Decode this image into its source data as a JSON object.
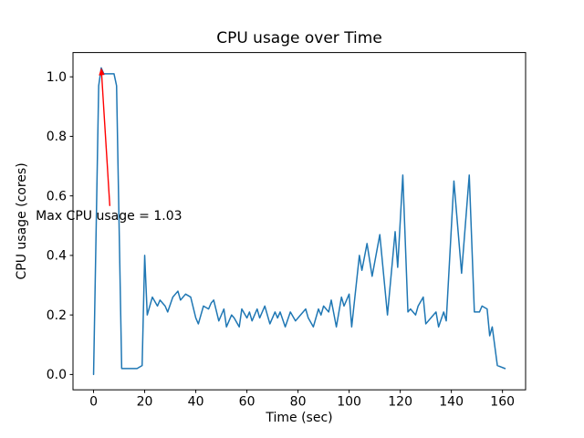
{
  "figure": {
    "background": "#ffffff"
  },
  "chart_data": {
    "type": "line",
    "title": "CPU usage over Time",
    "xlabel": "Time (sec)",
    "ylabel": "CPU usage (cores)",
    "xlim": [
      -8.05,
      169.05
    ],
    "ylim": [
      -0.0515,
      1.0815
    ],
    "xticks": [
      0,
      20,
      40,
      60,
      80,
      100,
      120,
      140,
      160
    ],
    "yticks": [
      0.0,
      0.2,
      0.4,
      0.6,
      0.8,
      1.0
    ],
    "ytick_labels": [
      "0.0",
      "0.2",
      "0.4",
      "0.6",
      "0.8",
      "1.0"
    ],
    "grid": false,
    "legend": null,
    "series": [
      {
        "name": "CPU usage",
        "color": "#1f77b4",
        "x": [
          0,
          2,
          3,
          4,
          6,
          8,
          9,
          11,
          13,
          15,
          17,
          19,
          20,
          21,
          23,
          25,
          26,
          28,
          29,
          31,
          33,
          34,
          36,
          38,
          40,
          41,
          43,
          45,
          46,
          47,
          49,
          51,
          52,
          54,
          55,
          57,
          58,
          60,
          61,
          62,
          64,
          65,
          67,
          69,
          71,
          72,
          73,
          75,
          77,
          79,
          81,
          83,
          84,
          86,
          88,
          89,
          90,
          92,
          93,
          95,
          97,
          98,
          100,
          101,
          104,
          105,
          107,
          109,
          112,
          115,
          118,
          119,
          121,
          123,
          124,
          126,
          127,
          129,
          130,
          132,
          134,
          135,
          137,
          138,
          141,
          144,
          147,
          149,
          151,
          152,
          154,
          155,
          156,
          158,
          161
        ],
        "y": [
          0.0,
          0.97,
          1.03,
          1.01,
          1.01,
          1.01,
          0.97,
          0.02,
          0.02,
          0.02,
          0.02,
          0.03,
          0.4,
          0.2,
          0.26,
          0.23,
          0.25,
          0.23,
          0.21,
          0.26,
          0.28,
          0.25,
          0.27,
          0.26,
          0.19,
          0.17,
          0.23,
          0.22,
          0.24,
          0.25,
          0.18,
          0.22,
          0.16,
          0.2,
          0.19,
          0.16,
          0.22,
          0.19,
          0.21,
          0.18,
          0.22,
          0.19,
          0.23,
          0.17,
          0.21,
          0.19,
          0.21,
          0.16,
          0.21,
          0.18,
          0.2,
          0.22,
          0.19,
          0.16,
          0.22,
          0.2,
          0.23,
          0.21,
          0.25,
          0.16,
          0.26,
          0.23,
          0.27,
          0.16,
          0.4,
          0.35,
          0.44,
          0.33,
          0.47,
          0.2,
          0.48,
          0.36,
          0.67,
          0.21,
          0.22,
          0.2,
          0.23,
          0.26,
          0.17,
          0.19,
          0.21,
          0.16,
          0.21,
          0.18,
          0.65,
          0.34,
          0.67,
          0.21,
          0.21,
          0.23,
          0.22,
          0.13,
          0.16,
          0.03,
          0.02
        ]
      }
    ],
    "annotation": {
      "text": "Max CPU usage = 1.03",
      "color": "#ff0000",
      "xy": [
        3,
        1.03
      ],
      "xytext": [
        6,
        0.52
      ]
    },
    "max_value": 1.03
  }
}
